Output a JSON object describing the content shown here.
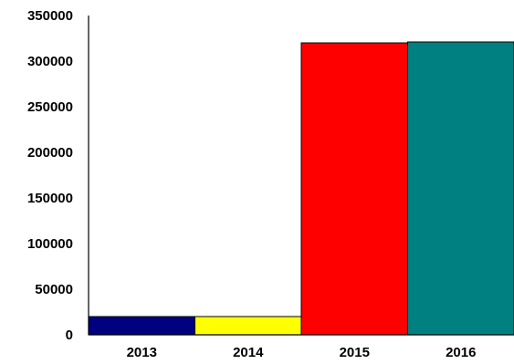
{
  "chart_data": {
    "type": "bar",
    "title": "",
    "xlabel": "",
    "ylabel": "",
    "categories": [
      "2013",
      "2014",
      "2015",
      "2016"
    ],
    "values": [
      20000,
      20000,
      320000,
      321000
    ],
    "colors": [
      "#000080",
      "#ffff00",
      "#ff0000",
      "#008080"
    ],
    "ylim": [
      0,
      350000
    ],
    "yticks": [
      0,
      50000,
      100000,
      150000,
      200000,
      250000,
      300000,
      350000
    ],
    "ytick_labels": [
      "0",
      "50000",
      "100000",
      "150000",
      "200000",
      "250000",
      "300000",
      "350000"
    ],
    "grid": false,
    "legend": "none"
  }
}
